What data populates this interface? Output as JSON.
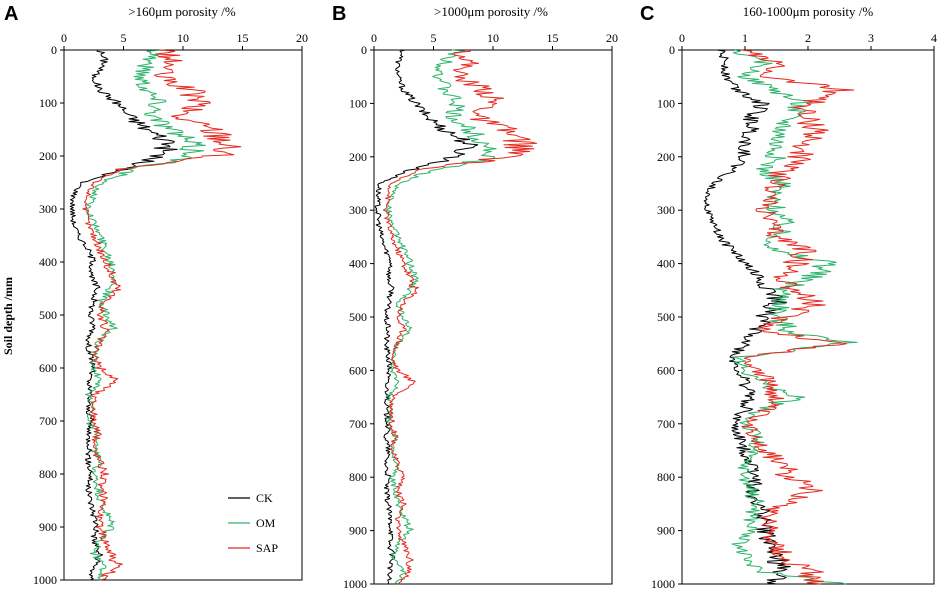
{
  "figure": {
    "y_axis_label": "Soil depth /mm",
    "legend": [
      {
        "name": "CK",
        "color": "#000000"
      },
      {
        "name": "OM",
        "color": "#2db36b"
      },
      {
        "name": "SAP",
        "color": "#e8281e"
      }
    ]
  },
  "chart_data": [
    {
      "panel": "A",
      "type": "line",
      "title": ">160μm porosity /%",
      "xlabel": ">160μm porosity /%",
      "ylabel": "Soil depth /mm",
      "xlim": [
        0,
        20
      ],
      "ylim": [
        0,
        1000
      ],
      "y_inverted": true,
      "xticks": [
        0,
        5,
        10,
        15,
        20
      ],
      "yticks": [
        0,
        100,
        200,
        300,
        400,
        500,
        600,
        700,
        800,
        900,
        1000
      ],
      "depth": [
        0,
        25,
        50,
        75,
        100,
        125,
        150,
        175,
        200,
        225,
        250,
        275,
        300,
        325,
        350,
        375,
        400,
        425,
        450,
        475,
        500,
        525,
        550,
        575,
        600,
        625,
        650,
        675,
        700,
        725,
        750,
        775,
        800,
        825,
        850,
        875,
        900,
        925,
        950,
        975,
        1000
      ],
      "series": [
        {
          "name": "CK",
          "values": [
            3.0,
            3.5,
            2.5,
            3.0,
            4.5,
            5.5,
            7.0,
            9.0,
            8.0,
            5.0,
            1.5,
            0.8,
            0.7,
            0.8,
            1.2,
            2.0,
            2.5,
            2.2,
            2.8,
            2.5,
            2.2,
            2.5,
            2.0,
            2.2,
            2.5,
            2.0,
            2.2,
            2.0,
            2.3,
            2.0,
            2.2,
            2.0,
            2.3,
            2.0,
            2.2,
            2.5,
            2.8,
            2.5,
            3.0,
            2.5,
            2.2
          ]
        },
        {
          "name": "OM",
          "values": [
            8.0,
            7.0,
            6.5,
            7.0,
            8.0,
            7.5,
            9.0,
            10.5,
            11.0,
            6.0,
            3.0,
            2.5,
            2.0,
            2.5,
            3.0,
            3.5,
            4.0,
            4.5,
            4.0,
            3.0,
            3.5,
            4.0,
            3.0,
            2.5,
            2.5,
            3.0,
            2.0,
            2.5,
            2.0,
            2.8,
            2.5,
            3.0,
            2.5,
            2.8,
            3.0,
            3.5,
            4.0,
            3.0,
            2.5,
            3.5,
            3.0
          ]
        },
        {
          "name": "SAP",
          "values": [
            8.5,
            9.0,
            8.0,
            10.5,
            11.5,
            9.5,
            12.5,
            14.0,
            13.0,
            4.5,
            2.5,
            2.0,
            1.8,
            2.0,
            2.5,
            3.0,
            3.5,
            4.0,
            4.5,
            3.5,
            3.0,
            3.5,
            3.0,
            2.5,
            3.0,
            4.5,
            2.5,
            2.5,
            2.5,
            2.8,
            2.5,
            3.0,
            3.5,
            3.0,
            3.5,
            3.0,
            3.0,
            3.5,
            4.0,
            4.5,
            3.0
          ]
        }
      ]
    },
    {
      "panel": "B",
      "type": "line",
      "title": ">1000μm porosity /%",
      "xlabel": ">1000μm porosity /%",
      "ylabel": "",
      "xlim": [
        0,
        20
      ],
      "ylim": [
        0,
        1000
      ],
      "y_inverted": true,
      "xticks": [
        0,
        5,
        10,
        15,
        20
      ],
      "yticks": [
        0,
        100,
        200,
        300,
        400,
        500,
        600,
        700,
        800,
        900,
        1000
      ],
      "depth": [
        0,
        25,
        50,
        75,
        100,
        125,
        150,
        175,
        200,
        225,
        250,
        275,
        300,
        325,
        350,
        375,
        400,
        425,
        450,
        475,
        500,
        525,
        550,
        575,
        600,
        625,
        650,
        675,
        700,
        725,
        750,
        775,
        800,
        825,
        850,
        875,
        900,
        925,
        950,
        975,
        1000
      ],
      "series": [
        {
          "name": "CK",
          "values": [
            2.5,
            2.0,
            2.0,
            2.5,
            3.5,
            4.5,
            6.0,
            8.0,
            7.0,
            3.0,
            0.5,
            0.3,
            0.3,
            0.4,
            0.6,
            1.0,
            1.5,
            1.2,
            1.5,
            1.2,
            1.0,
            1.2,
            1.0,
            1.2,
            1.3,
            1.0,
            1.2,
            1.0,
            1.2,
            1.0,
            1.2,
            1.0,
            1.2,
            1.0,
            1.2,
            1.3,
            1.5,
            1.3,
            1.6,
            1.3,
            1.2
          ]
        },
        {
          "name": "OM",
          "values": [
            7.0,
            6.0,
            5.5,
            6.0,
            7.0,
            6.5,
            8.0,
            9.5,
            10.0,
            5.0,
            2.0,
            1.5,
            1.2,
            1.5,
            2.0,
            2.5,
            3.0,
            3.5,
            3.0,
            2.0,
            2.5,
            3.0,
            2.0,
            1.5,
            1.5,
            2.0,
            1.2,
            1.5,
            1.2,
            1.8,
            1.5,
            2.0,
            1.5,
            1.8,
            2.0,
            2.5,
            3.0,
            2.0,
            1.5,
            2.5,
            2.0
          ]
        },
        {
          "name": "SAP",
          "values": [
            7.5,
            8.0,
            7.0,
            9.5,
            10.0,
            8.5,
            11.0,
            12.5,
            11.5,
            3.5,
            1.5,
            1.2,
            1.0,
            1.2,
            1.5,
            2.0,
            2.5,
            3.0,
            3.5,
            2.5,
            2.0,
            2.5,
            2.0,
            1.5,
            2.0,
            3.5,
            1.5,
            1.5,
            1.5,
            1.8,
            1.5,
            2.0,
            2.5,
            2.0,
            2.5,
            2.0,
            2.0,
            2.5,
            3.0,
            3.0,
            2.0
          ]
        }
      ]
    },
    {
      "panel": "C",
      "type": "line",
      "title": "160-1000μm porosity /%",
      "xlabel": "160-1000μm porosity /%",
      "ylabel": "",
      "xlim": [
        0,
        4
      ],
      "ylim": [
        0,
        1000
      ],
      "y_inverted": true,
      "xticks": [
        0,
        1,
        2,
        3,
        4
      ],
      "yticks": [
        0,
        100,
        200,
        300,
        400,
        500,
        600,
        700,
        800,
        900,
        1000
      ],
      "depth": [
        0,
        25,
        50,
        75,
        100,
        125,
        150,
        175,
        200,
        225,
        250,
        275,
        300,
        325,
        350,
        375,
        400,
        425,
        450,
        475,
        500,
        525,
        550,
        575,
        600,
        625,
        650,
        675,
        700,
        725,
        750,
        775,
        800,
        825,
        850,
        875,
        900,
        925,
        950,
        975,
        1000
      ],
      "series": [
        {
          "name": "CK",
          "values": [
            0.6,
            0.7,
            0.7,
            0.9,
            1.3,
            1.1,
            1.1,
            1.0,
            1.0,
            0.8,
            0.5,
            0.4,
            0.4,
            0.5,
            0.6,
            0.8,
            1.0,
            1.2,
            1.4,
            1.5,
            1.3,
            1.2,
            1.0,
            0.8,
            0.9,
            1.0,
            1.1,
            1.0,
            0.8,
            0.9,
            1.0,
            1.1,
            1.2,
            1.1,
            1.2,
            1.3,
            1.3,
            1.4,
            1.5,
            1.6,
            1.5
          ]
        },
        {
          "name": "OM",
          "values": [
            0.8,
            1.3,
            1.0,
            1.5,
            1.9,
            1.7,
            1.6,
            1.5,
            1.5,
            1.3,
            1.6,
            1.4,
            1.5,
            1.6,
            1.5,
            1.4,
            2.4,
            2.0,
            1.6,
            1.6,
            1.5,
            1.7,
            2.6,
            0.9,
            1.0,
            1.3,
            1.8,
            1.2,
            1.0,
            1.2,
            1.1,
            1.0,
            1.0,
            1.1,
            1.2,
            1.1,
            1.1,
            0.9,
            1.0,
            1.2,
            2.6
          ]
        },
        {
          "name": "SAP",
          "values": [
            1.0,
            1.5,
            1.3,
            2.6,
            2.0,
            1.9,
            2.2,
            1.9,
            1.9,
            1.6,
            1.5,
            1.4,
            1.3,
            1.4,
            1.5,
            2.0,
            1.8,
            1.6,
            1.8,
            2.1,
            1.6,
            1.3,
            2.5,
            1.0,
            1.2,
            1.4,
            1.5,
            1.3,
            1.0,
            1.2,
            1.3,
            1.6,
            1.7,
            2.2,
            1.6,
            1.4,
            1.4,
            1.5,
            1.6,
            2.0,
            2.2
          ]
        }
      ]
    }
  ]
}
